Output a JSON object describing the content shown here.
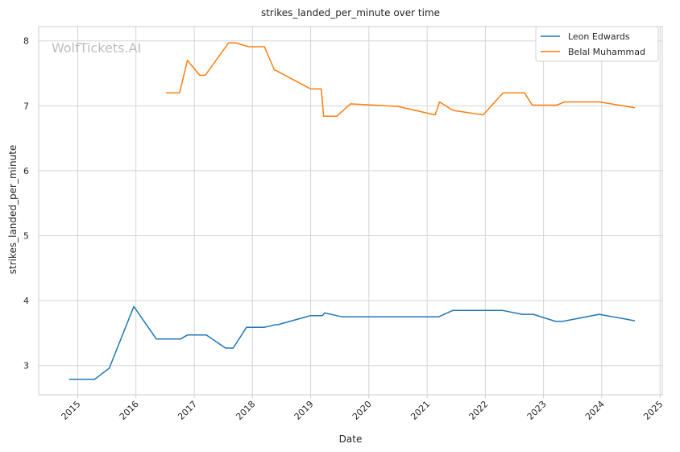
{
  "chart_data": {
    "type": "line",
    "title": "strikes_landed_per_minute over time",
    "xlabel": "Date",
    "ylabel": "strikes_landed_per_minute",
    "watermark": "WolfTickets.AI",
    "xlim": [
      "2014-05-01",
      "2025-01-15"
    ],
    "ylim": [
      2.55,
      8.22
    ],
    "x_ticks": [
      "2015-01-01",
      "2016-01-01",
      "2017-01-01",
      "2018-01-01",
      "2019-01-01",
      "2020-01-01",
      "2021-01-01",
      "2022-01-01",
      "2023-01-01",
      "2024-01-01",
      "2025-01-01"
    ],
    "x_tick_labels": [
      "2015",
      "2016",
      "2017",
      "2018",
      "2019",
      "2020",
      "2021",
      "2022",
      "2023",
      "2024",
      "2025"
    ],
    "y_ticks": [
      3,
      4,
      5,
      6,
      7,
      8
    ],
    "y_tick_labels": [
      "3",
      "4",
      "5",
      "6",
      "7",
      "8"
    ],
    "grid": true,
    "legend_position": "top-right",
    "colors": {
      "Leon Edwards": "#1f77b4",
      "Belal Muhammad": "#ff7f0e",
      "grid": "#d5d5d5",
      "axes_edge": "#cccccc"
    },
    "series": [
      {
        "name": "Leon Edwards",
        "x": [
          "2014-11-08",
          "2015-04-18",
          "2015-07-18",
          "2015-12-19",
          "2016-05-08",
          "2016-10-08",
          "2016-11-19",
          "2017-03-18",
          "2017-07-16",
          "2017-09-02",
          "2017-11-25",
          "2018-03-17",
          "2018-05-27",
          "2018-06-09",
          "2019-01-01",
          "2019-03-16",
          "2019-03-30",
          "2019-07-20",
          "2020-01-01",
          "2020-07-01",
          "2021-01-01",
          "2021-03-13",
          "2021-06-12",
          "2022-01-01",
          "2022-04-16",
          "2022-08-20",
          "2022-10-29",
          "2023-03-18",
          "2023-05-01",
          "2023-12-16",
          "2024-07-27"
        ],
        "y": [
          2.79,
          2.79,
          2.96,
          3.91,
          3.41,
          3.41,
          3.47,
          3.47,
          3.27,
          3.27,
          3.59,
          3.59,
          3.63,
          3.63,
          3.77,
          3.77,
          3.81,
          3.75,
          3.75,
          3.75,
          3.75,
          3.75,
          3.85,
          3.85,
          3.85,
          3.79,
          3.79,
          3.68,
          3.68,
          3.79,
          3.69
        ]
      },
      {
        "name": "Belal Muhammad",
        "x": [
          "2016-07-08",
          "2016-10-01",
          "2016-11-19",
          "2017-02-04",
          "2017-03-11",
          "2017-08-05",
          "2017-09-16",
          "2017-12-09",
          "2018-03-17",
          "2018-05-19",
          "2018-06-01",
          "2019-01-01",
          "2019-03-09",
          "2019-03-23",
          "2019-06-15",
          "2019-09-07",
          "2020-07-01",
          "2021-02-20",
          "2021-03-20",
          "2021-06-12",
          "2021-12-18",
          "2022-04-23",
          "2022-09-03",
          "2022-10-22",
          "2023-01-21",
          "2023-03-25",
          "2023-05-13",
          "2023-11-01",
          "2023-12-16",
          "2024-07-27"
        ],
        "y": [
          7.2,
          7.2,
          7.7,
          7.47,
          7.47,
          7.97,
          7.97,
          7.91,
          7.91,
          7.55,
          7.54,
          7.26,
          7.26,
          6.84,
          6.84,
          7.03,
          6.99,
          6.86,
          7.06,
          6.93,
          6.86,
          7.2,
          7.2,
          7.01,
          7.01,
          7.01,
          7.06,
          7.06,
          7.06,
          6.97
        ]
      }
    ]
  }
}
